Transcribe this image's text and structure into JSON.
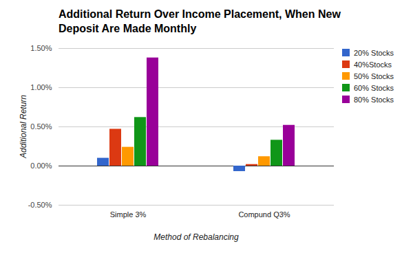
{
  "chart_data": {
    "type": "bar",
    "title": "Additional Return Over Income Placement, When New Deposit Are Made Monthly",
    "x_label": "Method of Rebalancing",
    "y_label": "Additional Return",
    "categories": [
      "Simple 3%",
      "Compund Q3%"
    ],
    "series": [
      {
        "name": "20% Stocks",
        "color": "#3366cc",
        "values": [
          0.1,
          -0.07
        ]
      },
      {
        "name": "40%Stocks",
        "color": "#dc3912",
        "values": [
          0.47,
          0.02
        ]
      },
      {
        "name": "50% Stocks",
        "color": "#ff9900",
        "values": [
          0.24,
          0.12
        ]
      },
      {
        "name": "60% Stocks",
        "color": "#109618",
        "values": [
          0.62,
          0.33
        ]
      },
      {
        "name": "80% Stocks",
        "color": "#990099",
        "values": [
          1.38,
          0.52
        ]
      }
    ],
    "ylim": [
      -0.5,
      1.5
    ],
    "yticks": [
      {
        "value": -0.5,
        "label": "-0.50%"
      },
      {
        "value": 0,
        "label": "0.00%"
      },
      {
        "value": 0.5,
        "label": "0.50%"
      },
      {
        "value": 1,
        "label": "1.00%"
      },
      {
        "value": 1.5,
        "label": "1.50%"
      }
    ],
    "grid": true,
    "legend": "right"
  }
}
